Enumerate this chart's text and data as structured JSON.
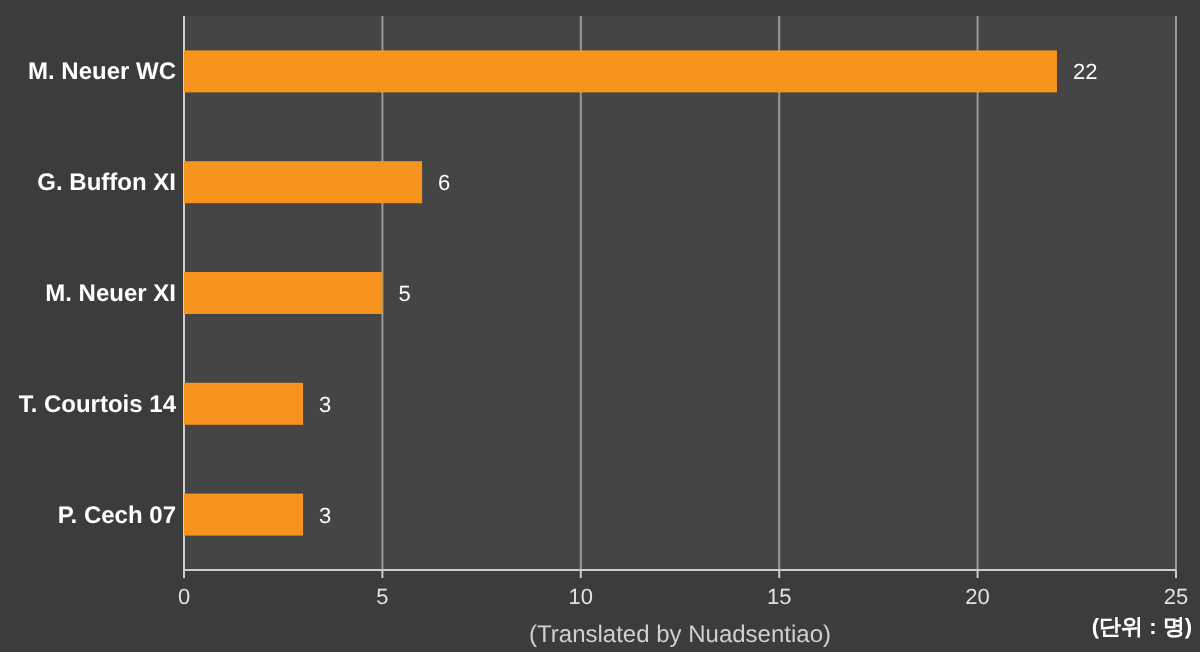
{
  "chart_data": {
    "type": "bar",
    "orientation": "horizontal",
    "categories": [
      "M. Neuer WC",
      "G. Buffon XI",
      "M. Neuer XI",
      "T. Courtois 14",
      "P. Cech 07"
    ],
    "values": [
      22,
      6,
      5,
      3,
      3
    ],
    "color": "#f7941d",
    "xlim": [
      0,
      25
    ],
    "xticks": [
      0,
      5,
      10,
      15,
      20,
      25
    ],
    "xlabel": "(단위 : 명)",
    "annotations": [
      "(Translated by Nuadsentiao)"
    ],
    "grid": "x",
    "data_labels": true
  }
}
